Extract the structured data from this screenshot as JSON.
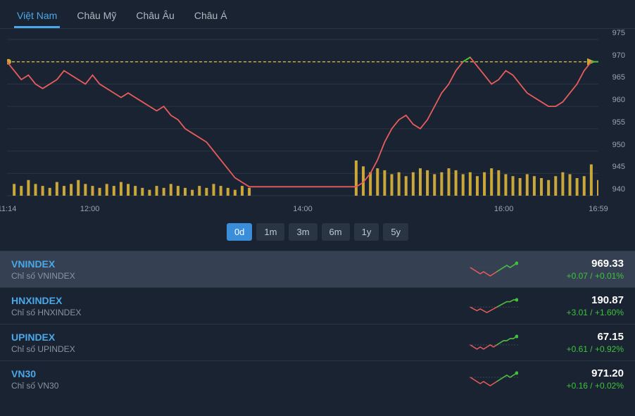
{
  "tabs": [
    {
      "label": "Việt Nam",
      "active": true
    },
    {
      "label": "Châu Mỹ",
      "active": false
    },
    {
      "label": "Châu Âu",
      "active": false
    },
    {
      "label": "Châu Á",
      "active": false
    }
  ],
  "chart": {
    "type": "line-volume",
    "y": {
      "min": 940,
      "max": 975,
      "ticks": [
        940,
        945,
        950,
        955,
        960,
        965,
        970,
        975
      ]
    },
    "x": {
      "labels": [
        "11:14",
        "12:00",
        "14:00",
        "16:00",
        "16:59"
      ],
      "positions": [
        0,
        0.14,
        0.5,
        0.84,
        1.0
      ]
    },
    "ref_line": 970,
    "line_color": "#e85c5c",
    "line_color_up": "#3ec23e",
    "volume_color": "#c9a73a",
    "ref_color": "#c9a73a",
    "grid_color": "#2a3544",
    "bg": "#1a2332",
    "price": [
      970,
      968,
      966,
      967,
      965,
      964,
      965,
      966,
      968,
      967,
      966,
      965,
      967,
      965,
      964,
      963,
      962,
      963,
      962,
      961,
      960,
      959,
      960,
      958,
      957,
      955,
      954,
      953,
      952,
      950,
      948,
      946,
      944,
      943,
      942,
      942,
      942,
      942,
      942,
      942,
      942,
      942,
      942,
      942,
      942,
      942,
      942,
      942,
      942,
      942,
      943,
      945,
      948,
      952,
      955,
      957,
      958,
      956,
      955,
      957,
      960,
      963,
      965,
      968,
      970,
      971,
      969,
      967,
      965,
      966,
      968,
      967,
      965,
      963,
      962,
      961,
      960,
      960,
      961,
      963,
      965,
      968,
      970,
      970
    ],
    "volume": [
      0,
      6,
      5,
      8,
      6,
      5,
      4,
      7,
      5,
      6,
      8,
      6,
      5,
      4,
      6,
      5,
      7,
      6,
      5,
      4,
      3,
      5,
      4,
      6,
      5,
      4,
      3,
      5,
      4,
      6,
      5,
      4,
      3,
      5,
      4,
      0,
      0,
      0,
      0,
      0,
      0,
      0,
      0,
      0,
      0,
      0,
      0,
      0,
      0,
      18,
      15,
      12,
      14,
      13,
      11,
      12,
      10,
      12,
      14,
      13,
      11,
      12,
      14,
      13,
      11,
      12,
      10,
      12,
      14,
      13,
      11,
      10,
      9,
      11,
      10,
      9,
      8,
      10,
      12,
      11,
      9,
      10,
      16,
      8
    ]
  },
  "time_ranges": [
    {
      "label": "0d",
      "active": true
    },
    {
      "label": "1m",
      "active": false
    },
    {
      "label": "3m",
      "active": false
    },
    {
      "label": "6m",
      "active": false
    },
    {
      "label": "1y",
      "active": false
    },
    {
      "label": "5y",
      "active": false
    }
  ],
  "indices": [
    {
      "name": "VNINDEX",
      "sub": "Chỉ số VNINDEX",
      "value": "969.33",
      "change": "+0.07 / +0.01%",
      "selected": true,
      "spark": [
        0,
        -1,
        -2,
        -3,
        -2,
        -3,
        -4,
        -3,
        -2,
        -1,
        0,
        1,
        0,
        1,
        2
      ]
    },
    {
      "name": "HNXINDEX",
      "sub": "Chỉ số HNXINDEX",
      "value": "190.87",
      "change": "+3.01 / +1.60%",
      "selected": false,
      "spark": [
        0,
        -1,
        -2,
        -1,
        -2,
        -3,
        -2,
        -1,
        0,
        1,
        2,
        3,
        3,
        4,
        4
      ]
    },
    {
      "name": "UPINDEX",
      "sub": "Chỉ số UPINDEX",
      "value": "67.15",
      "change": "+0.61 / +0.92%",
      "selected": false,
      "spark": [
        0,
        -1,
        -2,
        -1,
        -2,
        -1,
        0,
        -1,
        0,
        1,
        2,
        2,
        3,
        3,
        4
      ]
    },
    {
      "name": "VN30",
      "sub": "Chỉ số VN30",
      "value": "971.20",
      "change": "+0.16 / +0.02%",
      "selected": false,
      "spark": [
        0,
        -1,
        -2,
        -3,
        -2,
        -3,
        -4,
        -3,
        -2,
        -1,
        0,
        1,
        0,
        1,
        2
      ]
    }
  ],
  "colors": {
    "spark_down": "#e85c5c",
    "spark_up": "#3ec23e",
    "spark_dot": "#3ec23e"
  }
}
